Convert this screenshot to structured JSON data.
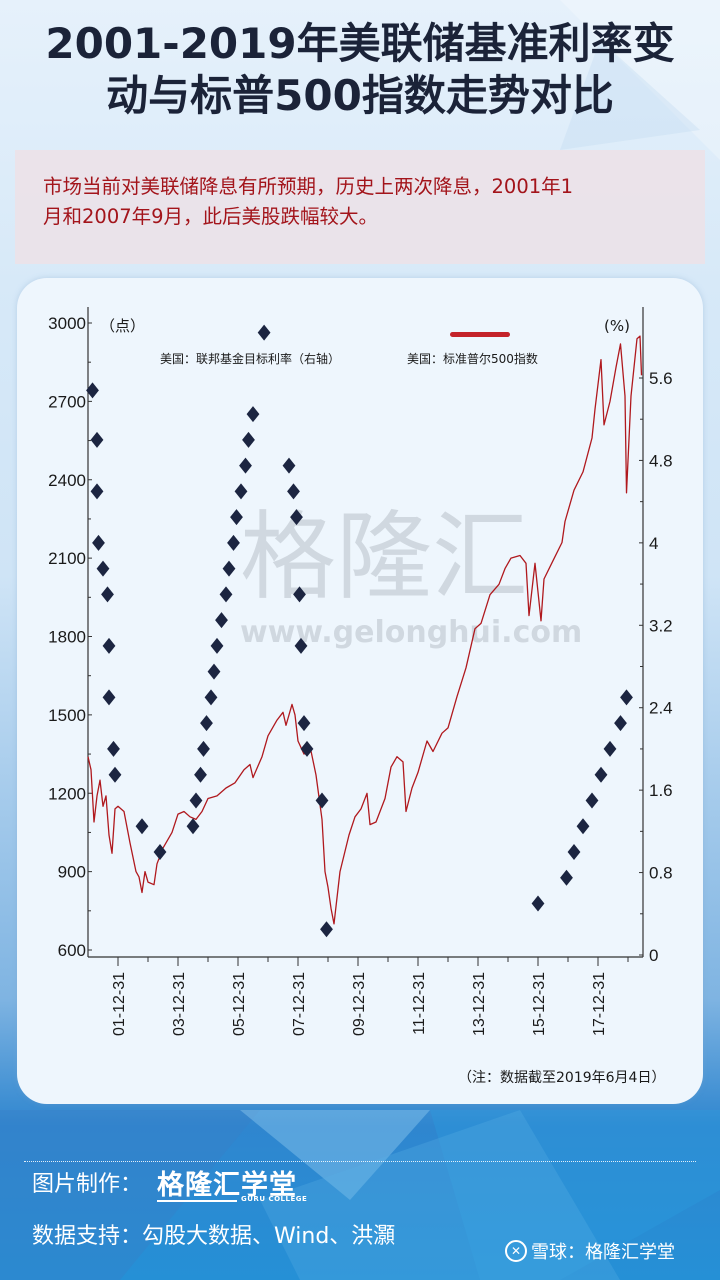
{
  "header": {
    "title_line1": "2001-2019年美联储基准利率变",
    "title_line2": "动与标普500指数走势对比"
  },
  "summary": {
    "line1": "市场当前对美联储降息有所预期，历史上两次降息，2001年1",
    "line2": "月和2007年9月，此后美股跌幅较大。"
  },
  "watermark": {
    "cn": "格隆汇",
    "url": "www.gelonghui.com"
  },
  "note": "（注：数据截至2019年6月4日）",
  "footer": {
    "producer_label": "图片制作：",
    "producer_brand": "格隆汇学堂",
    "producer_brand_sub": "GURU COLLEGE",
    "data_label": "数据支持：",
    "data_sources": "勾股大数据、Wind、洪灝",
    "platform_icon": "xueqiu-icon",
    "platform_text": "雪球：格隆汇学堂"
  },
  "colors": {
    "sp500_line": "#b0191e",
    "rate_marker": "#1c2541",
    "title": "#1b2338",
    "summary_text": "#a3141b"
  },
  "chart_data": {
    "type": "line+scatter (dual axis)",
    "title": "2001-2019年美联储基准利率变动与标普500指数走势对比",
    "left_axis": {
      "label": "（点）",
      "ylim": [
        600,
        3000
      ],
      "ticks": [
        3000,
        2700,
        2400,
        2100,
        1800,
        1500,
        1200,
        900,
        600
      ]
    },
    "right_axis": {
      "label": "(%)",
      "ylim": [
        0,
        5.6
      ],
      "ticks": [
        "5.6",
        "4.8",
        "4",
        "3.2",
        "2.4",
        "1.6",
        "0.8",
        "0"
      ]
    },
    "x_axis": {
      "tick_labels": [
        "01-12-31",
        "03-12-31",
        "05-12-31",
        "07-12-31",
        "09-12-31",
        "11-12-31",
        "13-12-31",
        "15-12-31",
        "17-12-31"
      ],
      "range": [
        "2001-01",
        "2019-06"
      ],
      "label_rotation": -90
    },
    "legend": [
      {
        "name": "美国：联邦基金目标利率（右轴）",
        "marker": "diamond"
      },
      {
        "name": "美国：标准普尔500指数",
        "marker": "line"
      }
    ],
    "series": [
      {
        "name": "美国：标准普尔500指数",
        "axis": "left",
        "kind": "line",
        "points_yearfrac_value": [
          [
            2001.0,
            1340
          ],
          [
            2001.1,
            1290
          ],
          [
            2001.2,
            1090
          ],
          [
            2001.3,
            1190
          ],
          [
            2001.4,
            1250
          ],
          [
            2001.5,
            1150
          ],
          [
            2001.6,
            1190
          ],
          [
            2001.7,
            1040
          ],
          [
            2001.8,
            970
          ],
          [
            2001.9,
            1140
          ],
          [
            2002.0,
            1150
          ],
          [
            2002.2,
            1130
          ],
          [
            2002.4,
            1010
          ],
          [
            2002.6,
            900
          ],
          [
            2002.7,
            880
          ],
          [
            2002.8,
            820
          ],
          [
            2002.9,
            900
          ],
          [
            2003.0,
            860
          ],
          [
            2003.2,
            850
          ],
          [
            2003.3,
            930
          ],
          [
            2003.5,
            990
          ],
          [
            2003.8,
            1050
          ],
          [
            2004.0,
            1120
          ],
          [
            2004.2,
            1130
          ],
          [
            2004.4,
            1110
          ],
          [
            2004.6,
            1100
          ],
          [
            2004.8,
            1130
          ],
          [
            2005.0,
            1180
          ],
          [
            2005.3,
            1190
          ],
          [
            2005.6,
            1220
          ],
          [
            2005.9,
            1240
          ],
          [
            2006.2,
            1290
          ],
          [
            2006.4,
            1310
          ],
          [
            2006.5,
            1260
          ],
          [
            2006.8,
            1340
          ],
          [
            2007.0,
            1420
          ],
          [
            2007.3,
            1480
          ],
          [
            2007.5,
            1510
          ],
          [
            2007.6,
            1460
          ],
          [
            2007.8,
            1540
          ],
          [
            2007.9,
            1500
          ],
          [
            2008.0,
            1400
          ],
          [
            2008.2,
            1350
          ],
          [
            2008.4,
            1380
          ],
          [
            2008.6,
            1270
          ],
          [
            2008.8,
            1100
          ],
          [
            2008.9,
            900
          ],
          [
            2009.0,
            840
          ],
          [
            2009.1,
            760
          ],
          [
            2009.2,
            700
          ],
          [
            2009.4,
            900
          ],
          [
            2009.7,
            1040
          ],
          [
            2009.9,
            1110
          ],
          [
            2010.1,
            1140
          ],
          [
            2010.3,
            1200
          ],
          [
            2010.4,
            1080
          ],
          [
            2010.6,
            1090
          ],
          [
            2010.9,
            1180
          ],
          [
            2011.1,
            1300
          ],
          [
            2011.3,
            1340
          ],
          [
            2011.5,
            1320
          ],
          [
            2011.6,
            1130
          ],
          [
            2011.8,
            1220
          ],
          [
            2012.0,
            1280
          ],
          [
            2012.3,
            1400
          ],
          [
            2012.5,
            1360
          ],
          [
            2012.8,
            1430
          ],
          [
            2013.0,
            1450
          ],
          [
            2013.3,
            1570
          ],
          [
            2013.6,
            1680
          ],
          [
            2013.9,
            1830
          ],
          [
            2014.1,
            1850
          ],
          [
            2014.4,
            1960
          ],
          [
            2014.7,
            2000
          ],
          [
            2014.9,
            2060
          ],
          [
            2015.1,
            2100
          ],
          [
            2015.4,
            2110
          ],
          [
            2015.6,
            2080
          ],
          [
            2015.7,
            1880
          ],
          [
            2015.9,
            2080
          ],
          [
            2016.1,
            1860
          ],
          [
            2016.2,
            2020
          ],
          [
            2016.5,
            2090
          ],
          [
            2016.8,
            2160
          ],
          [
            2016.9,
            2240
          ],
          [
            2017.2,
            2360
          ],
          [
            2017.5,
            2430
          ],
          [
            2017.8,
            2560
          ],
          [
            2017.9,
            2670
          ],
          [
            2018.1,
            2860
          ],
          [
            2018.2,
            2610
          ],
          [
            2018.4,
            2700
          ],
          [
            2018.6,
            2830
          ],
          [
            2018.75,
            2920
          ],
          [
            2018.9,
            2720
          ],
          [
            2018.95,
            2350
          ],
          [
            2019.1,
            2720
          ],
          [
            2019.3,
            2940
          ],
          [
            2019.4,
            2950
          ],
          [
            2019.45,
            2800
          ]
        ]
      },
      {
        "name": "美国：联邦基金目标利率（右轴）",
        "axis": "right",
        "kind": "scatter",
        "marker": "diamond",
        "points_yearfrac_value": [
          [
            2001.15,
            5.48
          ],
          [
            2001.3,
            5.0
          ],
          [
            2001.3,
            4.5
          ],
          [
            2001.35,
            4.0
          ],
          [
            2001.5,
            3.75
          ],
          [
            2001.65,
            3.5
          ],
          [
            2001.7,
            3.0
          ],
          [
            2001.7,
            2.5
          ],
          [
            2001.85,
            2.0
          ],
          [
            2001.9,
            1.75
          ],
          [
            2002.8,
            1.25
          ],
          [
            2003.4,
            1.0
          ],
          [
            2004.5,
            1.25
          ],
          [
            2004.6,
            1.5
          ],
          [
            2004.75,
            1.75
          ],
          [
            2004.85,
            2.0
          ],
          [
            2004.95,
            2.25
          ],
          [
            2005.1,
            2.5
          ],
          [
            2005.2,
            2.75
          ],
          [
            2005.3,
            3.0
          ],
          [
            2005.45,
            3.25
          ],
          [
            2005.6,
            3.5
          ],
          [
            2005.7,
            3.75
          ],
          [
            2005.85,
            4.0
          ],
          [
            2005.95,
            4.25
          ],
          [
            2006.1,
            4.5
          ],
          [
            2006.25,
            4.75
          ],
          [
            2006.35,
            5.0
          ],
          [
            2006.5,
            5.25
          ],
          [
            2006.87,
            6.04
          ],
          [
            2007.7,
            4.75
          ],
          [
            2007.85,
            4.5
          ],
          [
            2007.95,
            4.25
          ],
          [
            2008.05,
            3.5
          ],
          [
            2008.1,
            3.0
          ],
          [
            2008.2,
            2.25
          ],
          [
            2008.3,
            2.0
          ],
          [
            2008.8,
            1.5
          ],
          [
            2008.95,
            0.25
          ],
          [
            2016.0,
            0.5
          ],
          [
            2016.95,
            0.75
          ],
          [
            2017.2,
            1.0
          ],
          [
            2017.5,
            1.25
          ],
          [
            2017.8,
            1.5
          ],
          [
            2018.1,
            1.75
          ],
          [
            2018.4,
            2.0
          ],
          [
            2018.75,
            2.25
          ],
          [
            2018.95,
            2.5
          ]
        ]
      }
    ],
    "grid": false,
    "legend_position": "top"
  }
}
